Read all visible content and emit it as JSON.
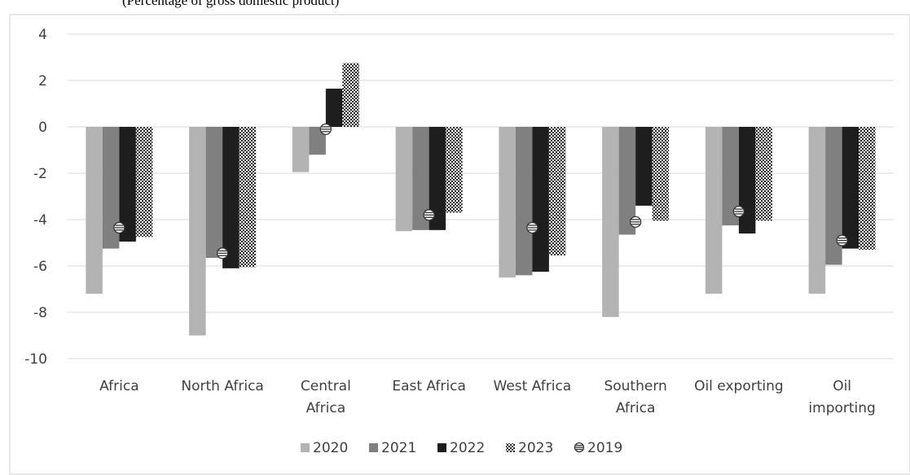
{
  "subtitle": "(Percentage of gross domestic product)",
  "chart_data": {
    "type": "bar",
    "title": "",
    "subtitle": "(Percentage of gross domestic product)",
    "categories": [
      [
        "Africa"
      ],
      [
        "North Africa"
      ],
      [
        "Central",
        "Africa"
      ],
      [
        "East Africa"
      ],
      [
        "West Africa"
      ],
      [
        "Southern",
        "Africa"
      ],
      [
        "Oil exporting"
      ],
      [
        "Oil",
        "importing"
      ]
    ],
    "series": [
      {
        "name": "2020",
        "type": "bar",
        "color": "#b3b3b3",
        "values": [
          -7.2,
          -9.0,
          -1.95,
          -4.5,
          -6.5,
          -8.2,
          -7.2,
          -7.2
        ]
      },
      {
        "name": "2021",
        "type": "bar",
        "color": "#808080",
        "values": [
          -5.25,
          -5.65,
          -1.2,
          -4.45,
          -6.4,
          -4.65,
          -4.25,
          -5.95
        ]
      },
      {
        "name": "2022",
        "type": "bar",
        "color": "#1e1e1e",
        "values": [
          -4.95,
          -6.1,
          1.65,
          -4.45,
          -6.25,
          -3.4,
          -4.6,
          -5.25
        ]
      },
      {
        "name": "2023",
        "type": "bar",
        "color": "#303030",
        "pattern": "checker",
        "values": [
          -4.75,
          -6.05,
          2.75,
          -3.7,
          -5.55,
          -4.05,
          -4.05,
          -5.3
        ]
      },
      {
        "name": "2019",
        "type": "marker",
        "color": "#333333",
        "values": [
          -4.35,
          -5.45,
          -0.1,
          -3.8,
          -4.35,
          -4.1,
          -3.65,
          -4.9
        ]
      }
    ],
    "yticks": [
      "4",
      "2",
      "0",
      "-2",
      "-4",
      "-6",
      "-8",
      "-10"
    ],
    "ylim": [
      -10,
      4
    ],
    "grid": true,
    "legend_position": "bottom"
  }
}
